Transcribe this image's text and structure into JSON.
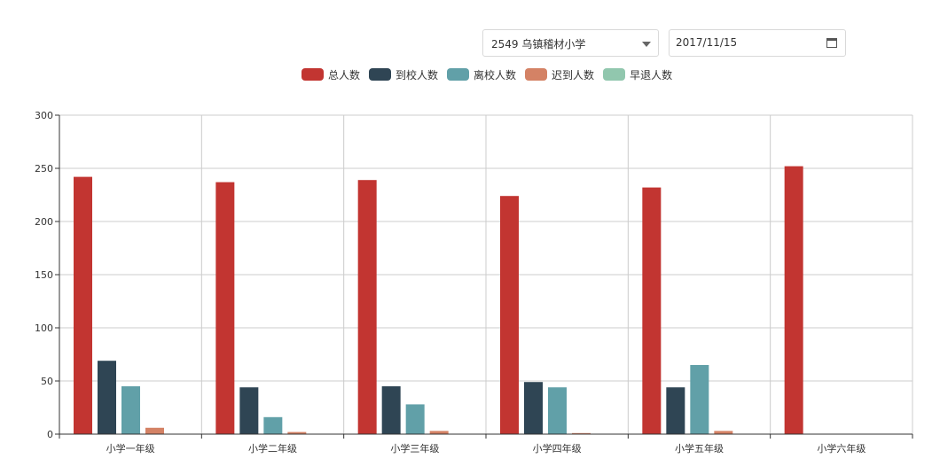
{
  "controls": {
    "school_select": "2549 乌镇稽材小学",
    "date_value": "2017/11/15"
  },
  "colors": {
    "series": [
      "#c23531",
      "#2f4554",
      "#61a0a8",
      "#d48265",
      "#91c7ae"
    ],
    "grid": "#cccccc",
    "axis": "#333333"
  },
  "chart_data": {
    "type": "bar",
    "categories": [
      "小学一年级",
      "小学二年级",
      "小学三年级",
      "小学四年级",
      "小学五年级",
      "小学六年级"
    ],
    "series": [
      {
        "name": "总人数",
        "values": [
          242,
          237,
          239,
          224,
          232,
          252
        ]
      },
      {
        "name": "到校人数",
        "values": [
          69,
          44,
          45,
          49,
          44,
          0
        ]
      },
      {
        "name": "离校人数",
        "values": [
          45,
          16,
          28,
          44,
          65,
          0
        ]
      },
      {
        "name": "迟到人数",
        "values": [
          6,
          2,
          3,
          1,
          3,
          0
        ]
      },
      {
        "name": "早退人数",
        "values": [
          0,
          0,
          0,
          0,
          0,
          0
        ]
      }
    ],
    "ylim": [
      0,
      300
    ],
    "yticks": [
      "0",
      "50",
      "100",
      "150",
      "200",
      "250",
      "300"
    ],
    "grid": true,
    "legend_position": "top-center"
  }
}
